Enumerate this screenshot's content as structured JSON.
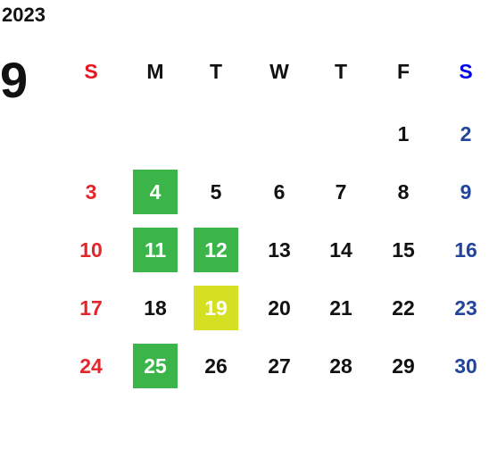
{
  "year": "2023",
  "month": "9",
  "weekdays": [
    "S",
    "M",
    "T",
    "W",
    "T",
    "F",
    "S"
  ],
  "header_colors": [
    "#e8141e",
    "#111111",
    "#111111",
    "#111111",
    "#111111",
    "#111111",
    "#0000ee"
  ],
  "column_colors": [
    "#e3262b",
    "#111111",
    "#111111",
    "#111111",
    "#111111",
    "#111111",
    "#22449a"
  ],
  "weeks": [
    [
      null,
      null,
      null,
      null,
      null,
      {
        "label": "1"
      },
      {
        "label": "2"
      }
    ],
    [
      {
        "label": "3"
      },
      {
        "label": "4",
        "bg": "#3bb54a"
      },
      {
        "label": "5"
      },
      {
        "label": "6"
      },
      {
        "label": "7"
      },
      {
        "label": "8"
      },
      {
        "label": "9"
      }
    ],
    [
      {
        "label": "10"
      },
      {
        "label": "11",
        "bg": "#3bb54a"
      },
      {
        "label": "12",
        "bg": "#3bb54a"
      },
      {
        "label": "13"
      },
      {
        "label": "14"
      },
      {
        "label": "15"
      },
      {
        "label": "16"
      }
    ],
    [
      {
        "label": "17"
      },
      {
        "label": "18"
      },
      {
        "label": "19",
        "bg": "#d4e021"
      },
      {
        "label": "20"
      },
      {
        "label": "21"
      },
      {
        "label": "22"
      },
      {
        "label": "23"
      }
    ],
    [
      {
        "label": "24"
      },
      {
        "label": "25",
        "bg": "#3bb54a"
      },
      {
        "label": "26"
      },
      {
        "label": "27"
      },
      {
        "label": "28"
      },
      {
        "label": "29"
      },
      {
        "label": "30"
      }
    ]
  ]
}
